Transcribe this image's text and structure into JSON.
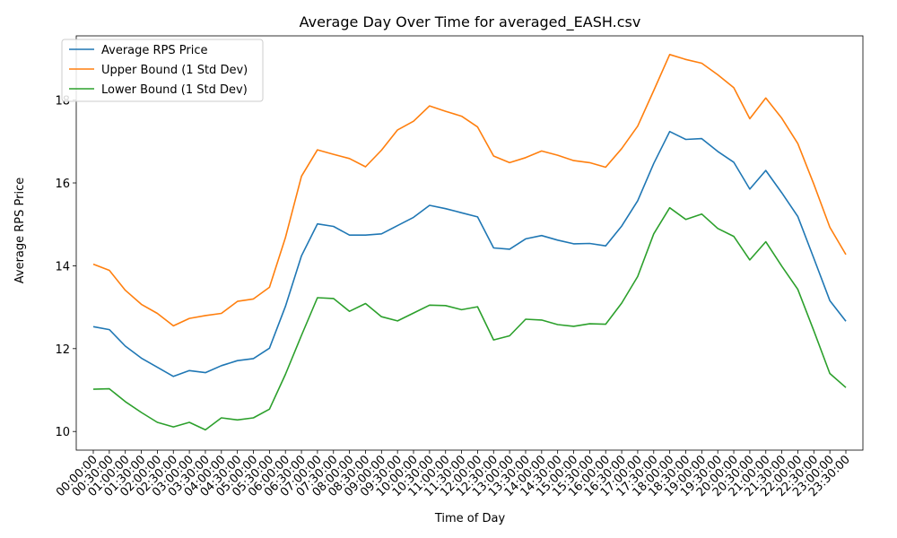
{
  "chart_data": {
    "type": "line",
    "title": "Average Day Over Time for averaged_EASH.csv",
    "xlabel": "Time of Day",
    "ylabel": "Average RPS Price",
    "ylim": [
      9.55,
      19.55
    ],
    "yticks": [
      10,
      12,
      14,
      16,
      18
    ],
    "grid": false,
    "legend_position": "top-left",
    "categories": [
      "00:00:00",
      "00:30:00",
      "01:00:00",
      "01:30:00",
      "02:00:00",
      "02:30:00",
      "03:00:00",
      "03:30:00",
      "04:00:00",
      "04:30:00",
      "05:00:00",
      "05:30:00",
      "06:00:00",
      "06:30:00",
      "07:00:00",
      "07:30:00",
      "08:00:00",
      "08:30:00",
      "09:00:00",
      "09:30:00",
      "10:00:00",
      "10:30:00",
      "11:00:00",
      "11:30:00",
      "12:00:00",
      "12:30:00",
      "13:00:00",
      "13:30:00",
      "14:00:00",
      "14:30:00",
      "15:00:00",
      "15:30:00",
      "16:00:00",
      "16:30:00",
      "17:00:00",
      "17:30:00",
      "18:00:00",
      "18:30:00",
      "19:00:00",
      "19:30:00",
      "20:00:00",
      "20:30:00",
      "21:00:00",
      "21:30:00",
      "22:00:00",
      "22:30:00",
      "23:00:00",
      "23:30:00"
    ],
    "series": [
      {
        "name": "Average RPS Price",
        "color": "#1f77b4",
        "values": [
          12.53,
          12.46,
          12.06,
          11.77,
          11.55,
          11.33,
          11.47,
          11.42,
          11.59,
          11.71,
          11.76,
          12.01,
          13.02,
          14.24,
          15.01,
          14.95,
          14.74,
          14.74,
          14.77,
          14.97,
          15.17,
          15.46,
          15.38,
          15.28,
          15.18,
          14.43,
          14.4,
          14.65,
          14.73,
          14.62,
          14.53,
          14.54,
          14.48,
          14.96,
          15.57,
          16.47,
          17.24,
          17.05,
          17.07,
          16.76,
          16.5,
          15.85,
          16.3,
          15.76,
          15.19,
          14.18,
          13.16,
          12.66
        ]
      },
      {
        "name": "Upper Bound (1 Std Dev)",
        "color": "#ff7f0e",
        "values": [
          14.04,
          13.89,
          13.41,
          13.07,
          12.85,
          12.55,
          12.73,
          12.8,
          12.85,
          13.14,
          13.2,
          13.48,
          14.68,
          16.16,
          16.8,
          16.69,
          16.59,
          16.39,
          16.79,
          17.28,
          17.49,
          17.86,
          17.73,
          17.61,
          17.35,
          16.65,
          16.49,
          16.61,
          16.77,
          16.67,
          16.54,
          16.49,
          16.38,
          16.83,
          17.37,
          18.23,
          19.1,
          18.98,
          18.89,
          18.61,
          18.3,
          17.55,
          18.05,
          17.56,
          16.95,
          15.97,
          14.93,
          14.27
        ]
      },
      {
        "name": "Lower Bound (1 Std Dev)",
        "color": "#2ca02c",
        "values": [
          11.02,
          11.03,
          10.72,
          10.46,
          10.22,
          10.11,
          10.22,
          10.04,
          10.33,
          10.28,
          10.33,
          10.54,
          11.38,
          12.32,
          13.23,
          13.21,
          12.9,
          13.09,
          12.77,
          12.67,
          12.86,
          13.05,
          13.04,
          12.94,
          13.01,
          12.21,
          12.31,
          12.71,
          12.69,
          12.58,
          12.54,
          12.6,
          12.59,
          13.1,
          13.74,
          14.77,
          15.4,
          15.12,
          15.25,
          14.9,
          14.71,
          14.14,
          14.58,
          13.99,
          13.43,
          12.43,
          11.4,
          11.06
        ]
      }
    ]
  }
}
